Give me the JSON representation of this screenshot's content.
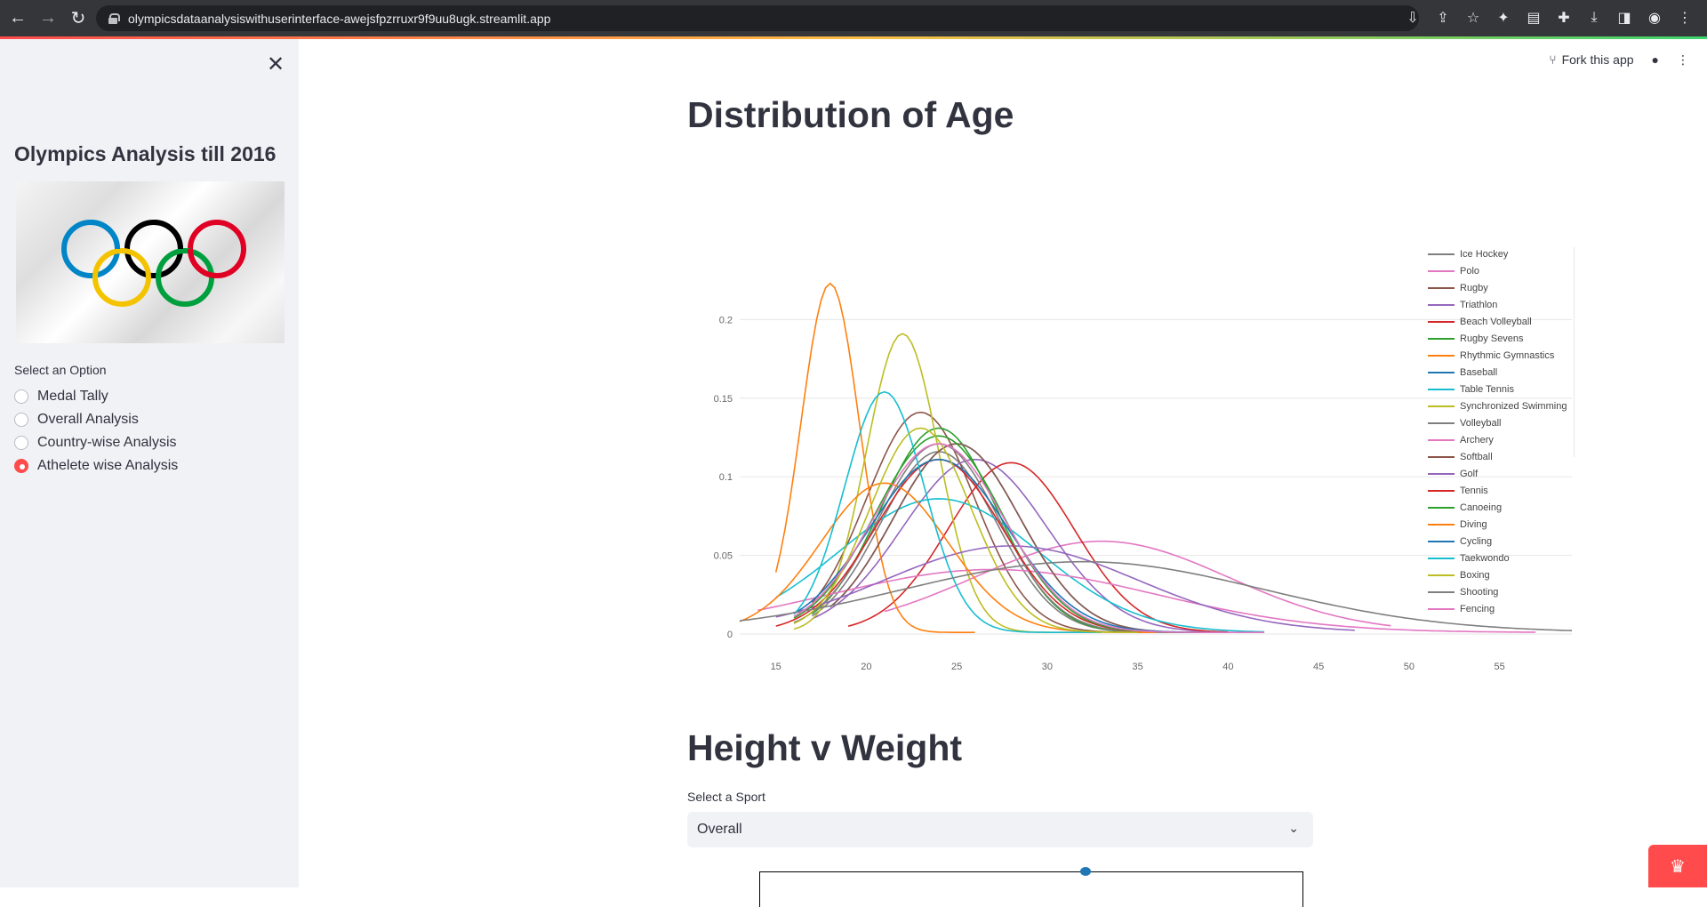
{
  "browser": {
    "url": "olympicsdataanalysiswithuserinterface-awejsfpzrruxr9f9uu8ugk.streamlit.app"
  },
  "sidebar": {
    "close_icon": "close-icon",
    "title": "Olympics Analysis till 2016",
    "option_label": "Select an Option",
    "options": [
      {
        "label": "Medal Tally",
        "selected": false
      },
      {
        "label": "Overall Analysis",
        "selected": false
      },
      {
        "label": "Country-wise Analysis",
        "selected": false
      },
      {
        "label": "Athelete wise Analysis",
        "selected": true
      }
    ]
  },
  "toolbar": {
    "fork_label": "Fork this app"
  },
  "main": {
    "heading1": "Distribution of Age",
    "heading2": "Height v Weight",
    "select_label": "Select a Sport",
    "select_value": "Overall"
  },
  "colors": {
    "accent": "#ff4b4b",
    "sidebar_bg": "#f0f2f6",
    "text": "#31333f"
  },
  "chart_data": {
    "type": "line",
    "title": "",
    "xlabel": "",
    "ylabel": "",
    "xlim": [
      13,
      59
    ],
    "ylim": [
      0,
      0.22
    ],
    "x_ticks": [
      15,
      20,
      25,
      30,
      35,
      40,
      45,
      50,
      55
    ],
    "y_ticks": [
      0,
      0.05,
      0.1,
      0.15,
      0.2
    ],
    "y_tick_labels": [
      "0",
      "0.05",
      "0.1",
      "0.15",
      "0.2"
    ],
    "grid": true,
    "legend_position": "right",
    "series": [
      {
        "name": "Ice Hockey",
        "color": "#7f7f7f",
        "peak_x": 24,
        "peak_y": 0.115,
        "spread": 3.2,
        "x_min": 17,
        "x_max": 40
      },
      {
        "name": "Polo",
        "color": "#e377c2",
        "peak_x": 33,
        "peak_y": 0.058,
        "spread": 7,
        "x_min": 21,
        "x_max": 49
      },
      {
        "name": "Rugby",
        "color": "#8c564b",
        "peak_x": 23,
        "peak_y": 0.14,
        "spread": 3,
        "x_min": 17,
        "x_max": 35
      },
      {
        "name": "Triathlon",
        "color": "#9467bd",
        "peak_x": 26,
        "peak_y": 0.11,
        "spread": 4,
        "x_min": 17,
        "x_max": 40
      },
      {
        "name": "Beach Volleyball",
        "color": "#d62728",
        "peak_x": 28,
        "peak_y": 0.108,
        "spread": 3.5,
        "x_min": 19,
        "x_max": 40
      },
      {
        "name": "Rugby Sevens",
        "color": "#2ca02c",
        "peak_x": 24,
        "peak_y": 0.13,
        "spread": 3.2,
        "x_min": 17,
        "x_max": 36
      },
      {
        "name": "Rhythmic Gymnastics",
        "color": "#ff7f0e",
        "peak_x": 18,
        "peak_y": 0.222,
        "spread": 1.6,
        "x_min": 15,
        "x_max": 26
      },
      {
        "name": "Baseball",
        "color": "#1f77b4",
        "peak_x": 25,
        "peak_y": 0.12,
        "spread": 3.5,
        "x_min": 18,
        "x_max": 39
      },
      {
        "name": "Table Tennis",
        "color": "#17becf",
        "peak_x": 24,
        "peak_y": 0.085,
        "spread": 5.5,
        "x_min": 15,
        "x_max": 42
      },
      {
        "name": "Synchronized Swimming",
        "color": "#bcbd22",
        "peak_x": 22,
        "peak_y": 0.19,
        "spread": 2,
        "x_min": 16,
        "x_max": 32
      },
      {
        "name": "Volleyball",
        "color": "#7f7f7f",
        "peak_x": 24,
        "peak_y": 0.12,
        "spread": 3.3,
        "x_min": 16,
        "x_max": 38
      },
      {
        "name": "Archery",
        "color": "#e377c2",
        "peak_x": 27,
        "peak_y": 0.04,
        "spread": 9,
        "x_min": 14,
        "x_max": 57
      },
      {
        "name": "Softball",
        "color": "#8c564b",
        "peak_x": 25,
        "peak_y": 0.12,
        "spread": 3.5,
        "x_min": 18,
        "x_max": 36
      },
      {
        "name": "Golf",
        "color": "#9467bd",
        "peak_x": 28,
        "peak_y": 0.055,
        "spread": 7,
        "x_min": 15,
        "x_max": 47
      },
      {
        "name": "Tennis",
        "color": "#d62728",
        "peak_x": 24,
        "peak_y": 0.11,
        "spread": 3.5,
        "x_min": 15,
        "x_max": 40
      },
      {
        "name": "Canoeing",
        "color": "#2ca02c",
        "peak_x": 24,
        "peak_y": 0.125,
        "spread": 3.5,
        "x_min": 16,
        "x_max": 38
      },
      {
        "name": "Diving",
        "color": "#ff7f0e",
        "peak_x": 21,
        "peak_y": 0.095,
        "spread": 3.5,
        "x_min": 13,
        "x_max": 36
      },
      {
        "name": "Cycling",
        "color": "#1f77b4",
        "peak_x": 24,
        "peak_y": 0.11,
        "spread": 3.8,
        "x_min": 16,
        "x_max": 40
      },
      {
        "name": "Taekwondo",
        "color": "#17becf",
        "peak_x": 21,
        "peak_y": 0.153,
        "spread": 2.2,
        "x_min": 16,
        "x_max": 33
      },
      {
        "name": "Boxing",
        "color": "#bcbd22",
        "peak_x": 23,
        "peak_y": 0.13,
        "spread": 2.8,
        "x_min": 16,
        "x_max": 35
      },
      {
        "name": "Shooting",
        "color": "#7f7f7f",
        "peak_x": 32,
        "peak_y": 0.045,
        "spread": 10,
        "x_min": 13,
        "x_max": 59
      },
      {
        "name": "Fencing",
        "color": "#e377c2",
        "peak_x": 24,
        "peak_y": 0.12,
        "spread": 3.6,
        "x_min": 16,
        "x_max": 42
      }
    ]
  }
}
